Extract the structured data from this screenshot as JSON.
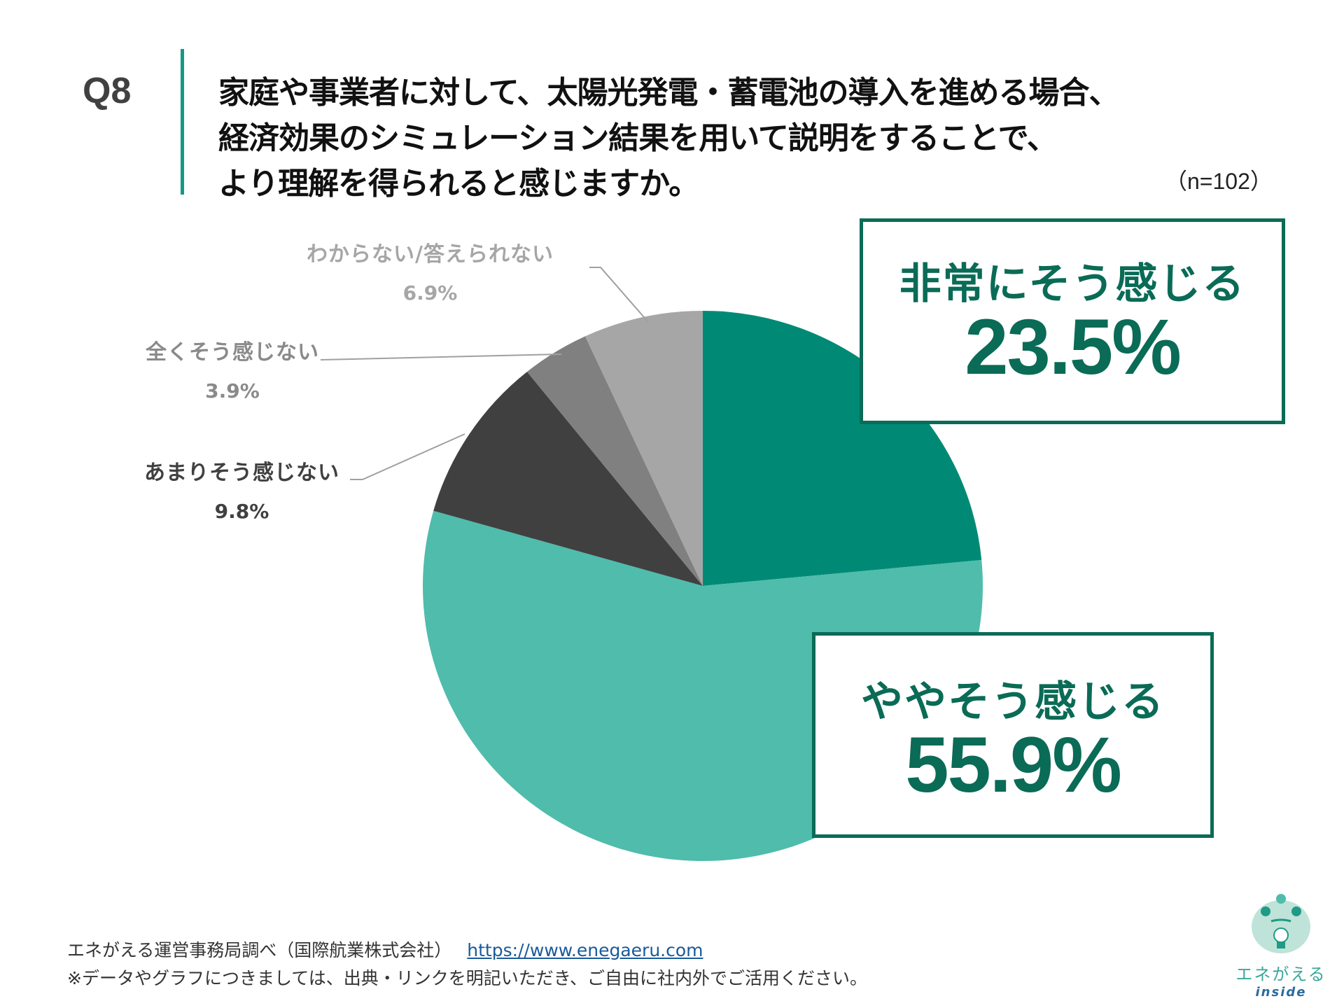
{
  "question": {
    "number": "Q8",
    "lines": [
      "家庭や事業者に対して、太陽光発電・蓄電池の導入を進める場合、",
      "経済効果のシミュレーション結果を用いて説明をすることで、",
      "より理解を得られると感じますか。"
    ],
    "sample_size": "（n=102）"
  },
  "chart_data": {
    "type": "pie",
    "title": "家庭や事業者に対して、太陽光発電・蓄電池の導入を進める場合、経済効果のシミュレーション結果を用いて説明をすることで、より理解を得られると感じますか。",
    "n": 102,
    "categories": [
      "非常にそう感じる",
      "ややそう感じる",
      "あまりそう感じない",
      "全くそう感じない",
      "わからない/答えられない"
    ],
    "values": [
      23.5,
      55.9,
      9.8,
      3.9,
      6.9
    ],
    "unit": "%",
    "colors": [
      "#008a76",
      "#4fbcac",
      "#404040",
      "#808080",
      "#a6a6a6"
    ],
    "start_angle": "12 o'clock, clockwise"
  },
  "labels": {
    "dont_know": {
      "name": "わからない/答えられない",
      "pct": "6.9%",
      "color": "#a6a6a6"
    },
    "not_at_all": {
      "name": "全くそう感じない",
      "pct": "3.9%",
      "color": "#8a8a8a"
    },
    "not_much": {
      "name": "あまりそう感じない",
      "pct": "9.8%",
      "color": "#404040"
    }
  },
  "callouts": {
    "strongly": {
      "name": "非常にそう感じる",
      "pct": "23.5%"
    },
    "somewhat": {
      "name": "ややそう感じる",
      "pct": "55.9%"
    }
  },
  "colors": {
    "accent_bar": "#12998a",
    "callout_green": "#0a6b56",
    "leader_line": "#a0a0a0"
  },
  "footer": {
    "source": "エネがえる運営事務局調べ（国際航業株式会社）",
    "link": "https://www.enegaeru.com",
    "note": "※データやグラフにつきましては、出典・リンクを明記いただき、ご自由に社内外でご活用ください。"
  },
  "logo": {
    "name": "エネがえる",
    "sub": "inside"
  }
}
